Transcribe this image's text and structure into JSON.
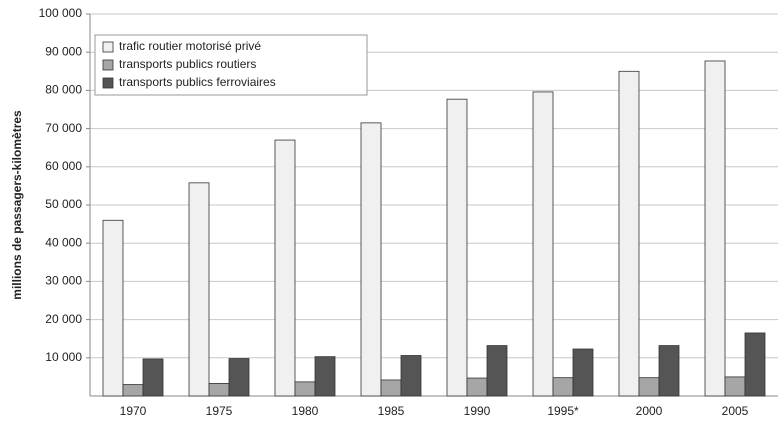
{
  "chart_data": {
    "type": "bar",
    "y_label": "millions de passagers-kilomètres",
    "categories": [
      "1970",
      "1975",
      "1980",
      "1985",
      "1990",
      "1995*",
      "2000",
      "2005"
    ],
    "series": [
      {
        "name": "trafic routier motorisé privé",
        "color": "#f0f0f0",
        "values": [
          46000,
          55800,
          67000,
          71500,
          77700,
          79600,
          85000,
          87700
        ]
      },
      {
        "name": "transports publics routiers",
        "color": "#a6a6a6",
        "values": [
          3000,
          3300,
          3700,
          4200,
          4700,
          4800,
          4800,
          5000
        ]
      },
      {
        "name": "transports publics ferroviaires",
        "color": "#555555",
        "values": [
          9700,
          9800,
          10300,
          10600,
          13200,
          12300,
          13200,
          16500
        ]
      }
    ],
    "ylim": [
      0,
      100000
    ],
    "yticks": [
      {
        "value": 10000,
        "label": "10 000"
      },
      {
        "value": 20000,
        "label": "20 000"
      },
      {
        "value": 30000,
        "label": "30 000"
      },
      {
        "value": 40000,
        "label": "40 000"
      },
      {
        "value": 50000,
        "label": "50 000"
      },
      {
        "value": 60000,
        "label": "60 000"
      },
      {
        "value": 70000,
        "label": "70 000"
      },
      {
        "value": 80000,
        "label": "80 000"
      },
      {
        "value": 90000,
        "label": "90 000"
      },
      {
        "value": 100000,
        "label": "100 000"
      }
    ],
    "grid": true,
    "legend": "upper-left"
  }
}
